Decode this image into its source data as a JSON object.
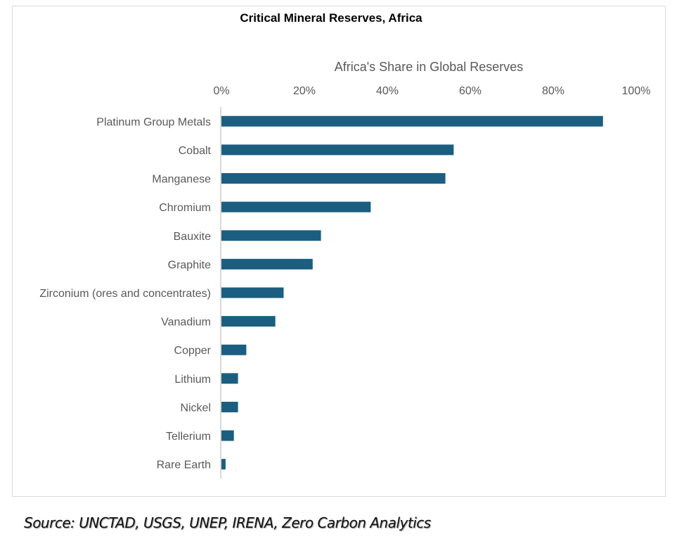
{
  "chart_data": {
    "type": "bar",
    "orientation": "horizontal",
    "title": "Critical Mineral Reserves, Africa",
    "xlabel": "Africa's Share in Global Reserves",
    "ylabel": "",
    "xlim": [
      0,
      100
    ],
    "x_ticks": [
      "0%",
      "20%",
      "40%",
      "60%",
      "80%",
      "100%"
    ],
    "x_tick_values": [
      0,
      20,
      40,
      60,
      80,
      100
    ],
    "axis_position": "top",
    "grid": false,
    "legend": "none",
    "bar_color": "#1b5e80",
    "categories": [
      "Platinum Group Metals",
      "Cobalt",
      "Manganese",
      "Chromium",
      "Bauxite",
      "Graphite",
      "Zirconium (ores and concentrates)",
      "Vanadium",
      "Copper",
      "Lithium",
      "Nickel",
      "Tellerium",
      "Rare Earth"
    ],
    "values": [
      92,
      56,
      54,
      36,
      24,
      22,
      15,
      13,
      6,
      4,
      4,
      3,
      1
    ],
    "unit": "%"
  },
  "footer": {
    "source": "Source: UNCTAD, USGS, UNEP, IRENA, Zero Carbon Analytics"
  }
}
